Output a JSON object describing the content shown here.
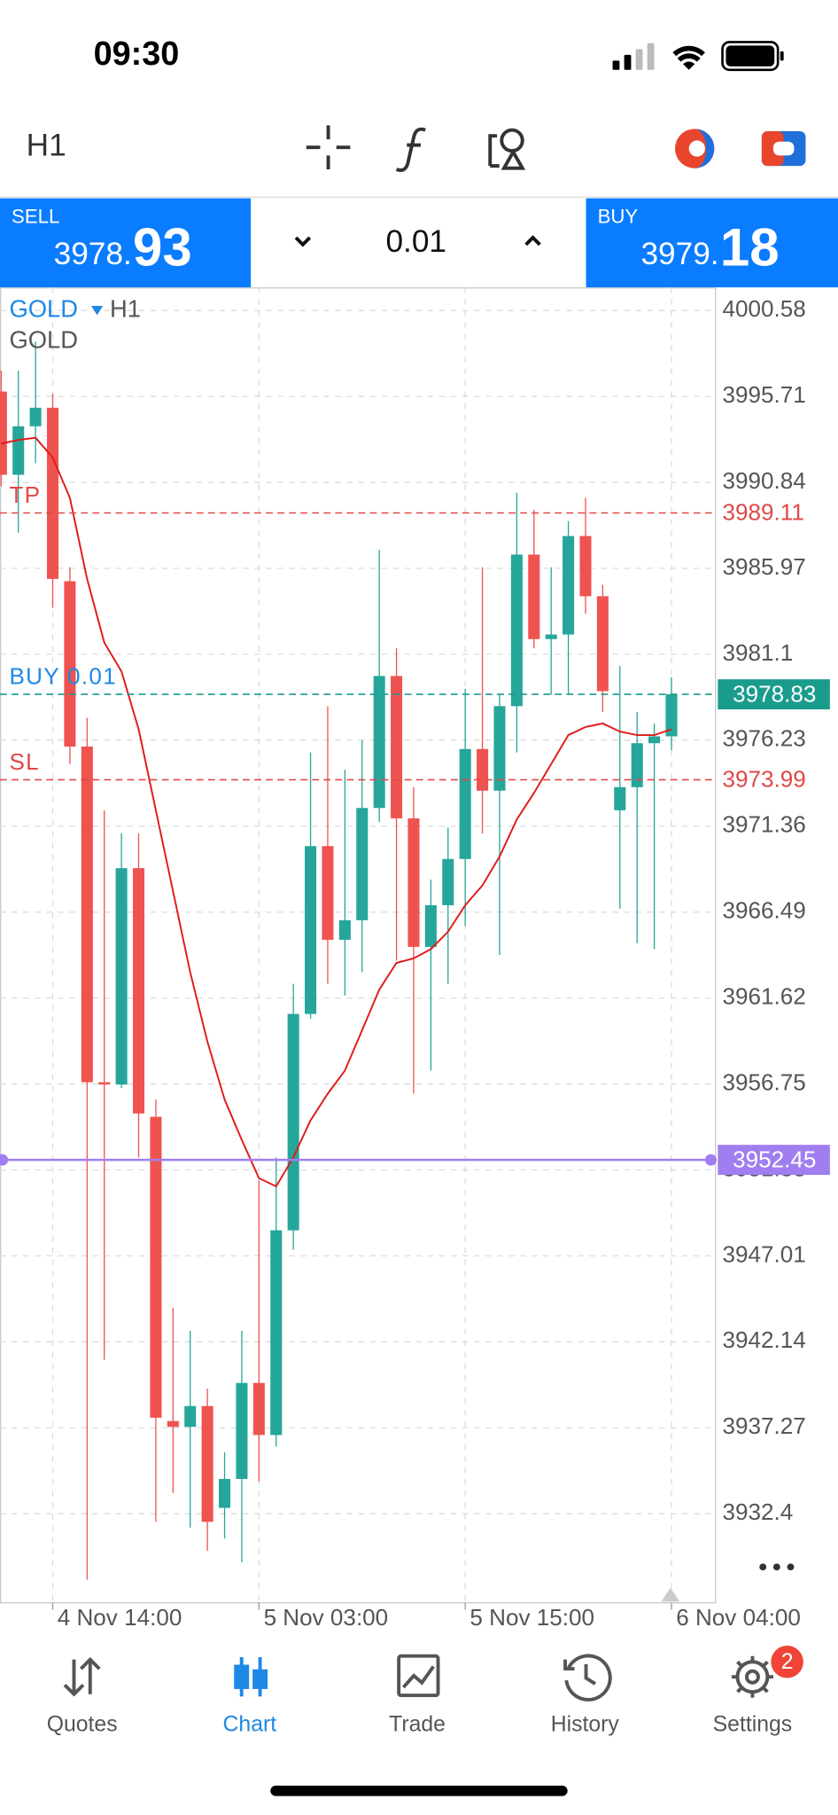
{
  "status_bar": {
    "time": "09:30"
  },
  "toolbar": {
    "timeframe": "H1"
  },
  "trade_panel": {
    "sell": {
      "label": "SELL",
      "price_head": "3978.",
      "price_tail": "93"
    },
    "lot": "0.01",
    "buy": {
      "label": "BUY",
      "price_head": "3979.",
      "price_tail": "18"
    }
  },
  "chart_data": {
    "type": "candlestick",
    "symbol": "GOLD",
    "timeframe": "H1",
    "indicator_label": "GOLD",
    "up_color": "#26a69a",
    "down_color": "#ef5350",
    "grid": true,
    "categories": [
      null,
      null,
      null,
      "4 Nov 14:00",
      null,
      null,
      null,
      null,
      null,
      null,
      null,
      null,
      null,
      null,
      null,
      "5 Nov 03:00",
      null,
      null,
      null,
      null,
      null,
      null,
      null,
      null,
      null,
      null,
      null,
      "5 Nov 15:00",
      null,
      null,
      null,
      null,
      null,
      null,
      null,
      null,
      null,
      null,
      null,
      "6 Nov 04:00"
    ],
    "open": [
      3995.99,
      3991.27,
      3994.02,
      3995.07,
      3985.24,
      3975.87,
      3956.85,
      3956.72,
      3968.98,
      3954.89,
      3937.65,
      3937.32,
      3938.5,
      3932.73,
      3934.37,
      3939.81,
      3936.86,
      3948.46,
      3960.72,
      3970.23,
      3964.92,
      3966.03,
      3972.39,
      3979.87,
      3971.8,
      3964.52,
      3966.88,
      3969.5,
      3975.73,
      3973.37,
      3978.16,
      3986.75,
      3981.96,
      3982.22,
      3987.8,
      3984.39,
      3972.26,
      3973.57,
      3976.06,
      3976.45
    ],
    "high": [
      3997.17,
      3997.17,
      3998.81,
      3995.86,
      3986.03,
      3977.5,
      3972.26,
      3970.95,
      3970.95,
      3955.87,
      3944.07,
      3942.78,
      3939.48,
      3935.88,
      3942.76,
      3951.28,
      3952.59,
      3962.43,
      3975.54,
      3978.16,
      3974.56,
      3976.23,
      3987.01,
      3981.44,
      3973.57,
      3968.33,
      3971.28,
      3979.14,
      3986.03,
      3978.81,
      3990.25,
      3989.3,
      3986.03,
      3988.65,
      3989.96,
      3985.04,
      3980.45,
      3977.83,
      3977.17,
      3979.8
    ],
    "low": [
      3990.62,
      3987.99,
      3991.93,
      3983.73,
      3974.88,
      3928.66,
      3941.12,
      3956.52,
      3952.59,
      3931.94,
      3933.58,
      3931.61,
      3930.3,
      3931.0,
      3929.65,
      3934.24,
      3936.2,
      3947.35,
      3960.46,
      3962.43,
      3961.77,
      3963.08,
      3971.6,
      3963.74,
      3956.2,
      3957.51,
      3962.43,
      3965.71,
      3970.95,
      3964.06,
      3975.54,
      3981.44,
      3978.81,
      3978.81,
      3983.4,
      3977.83,
      3966.69,
      3964.72,
      3964.39,
      3975.67
    ],
    "close": [
      3991.27,
      3994.02,
      3995.07,
      3985.37,
      3975.87,
      3956.85,
      3956.72,
      3968.98,
      3955.08,
      3937.84,
      3937.32,
      3938.5,
      3931.94,
      3934.37,
      3939.81,
      3936.86,
      3948.46,
      3960.72,
      3970.23,
      3964.92,
      3966.03,
      3972.39,
      3979.87,
      3971.8,
      3964.52,
      3966.88,
      3969.5,
      3975.73,
      3973.37,
      3978.16,
      3986.75,
      3981.96,
      3982.22,
      3987.8,
      3984.39,
      3979.01,
      3973.57,
      3976.06,
      3976.45,
      3978.83
    ],
    "moving_average": {
      "color": "#e01b1b",
      "values": [
        3993.04,
        3993.24,
        3993.37,
        3992.25,
        3989.96,
        3985.37,
        3981.77,
        3980.13,
        3976.85,
        3972.26,
        3967.67,
        3963.08,
        3959.15,
        3955.87,
        3953.58,
        3951.41,
        3950.95,
        3952.59,
        3954.69,
        3956.2,
        3957.51,
        3959.8,
        3962.1,
        3963.61,
        3963.87,
        3964.39,
        3965.38,
        3966.88,
        3968.0,
        3969.64,
        3971.74,
        3973.24,
        3974.88,
        3976.52,
        3976.98,
        3977.18,
        3976.72,
        3976.52,
        3976.52,
        3976.85
      ]
    },
    "ylim": [
      3927.35,
      4001.89
    ],
    "yticks": [
      4000.58,
      3995.71,
      3990.84,
      3985.97,
      3981.1,
      3976.23,
      3971.36,
      3966.49,
      3961.62,
      3956.75,
      3951.88,
      3947.01,
      3942.14,
      3937.27,
      3932.4
    ],
    "price_lines": [
      {
        "label": "TP",
        "value": 3989.11,
        "color": "#e04848",
        "label_box": false
      },
      {
        "label": "BUY 0.01",
        "value": 3978.83,
        "color": "#1a9c8c",
        "label_color": "#1e88e5",
        "label_box": true
      },
      {
        "label": "SL",
        "value": 3973.99,
        "color": "#e04848",
        "label_box": false
      }
    ],
    "alert_line": {
      "value": 3952.45,
      "color": "#a07ef0"
    }
  },
  "tab_bar": {
    "tabs": [
      "Quotes",
      "Chart",
      "Trade",
      "History",
      "Settings"
    ],
    "active": 1,
    "settings_badge": "2"
  }
}
